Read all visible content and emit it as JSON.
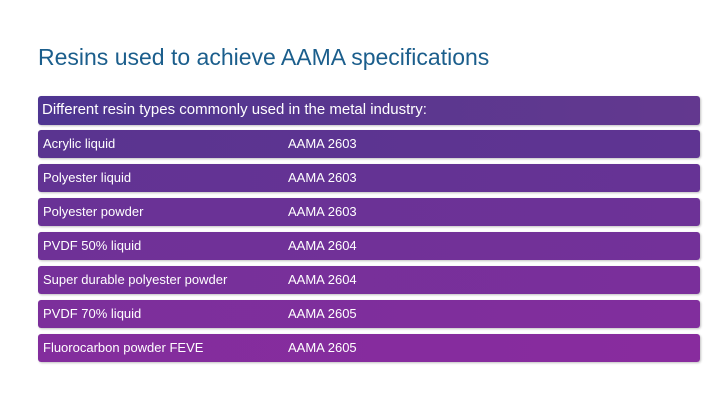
{
  "slide": {
    "title": "Resins used to achieve AAMA specifications",
    "header": "Different resin types commonly used in the metal industry:",
    "rows": [
      {
        "resin": "Acrylic liquid",
        "spec": "AAMA 2603"
      },
      {
        "resin": "Polyester liquid",
        "spec": "AAMA 2603"
      },
      {
        "resin": "Polyester powder",
        "spec": "AAMA 2603"
      },
      {
        "resin": "PVDF 50% liquid",
        "spec": "AAMA 2604"
      },
      {
        "resin": "Super durable polyester powder",
        "spec": "AAMA 2604"
      },
      {
        "resin": "PVDF 70% liquid",
        "spec": "AAMA 2605"
      },
      {
        "resin": "Fluorocarbon powder FEVE",
        "spec": "AAMA 2605"
      }
    ]
  },
  "colors": {
    "title": "#1b5e8c",
    "header_bar": "#553691",
    "row_start": "#5a3490",
    "row_end": "#882c9e"
  }
}
